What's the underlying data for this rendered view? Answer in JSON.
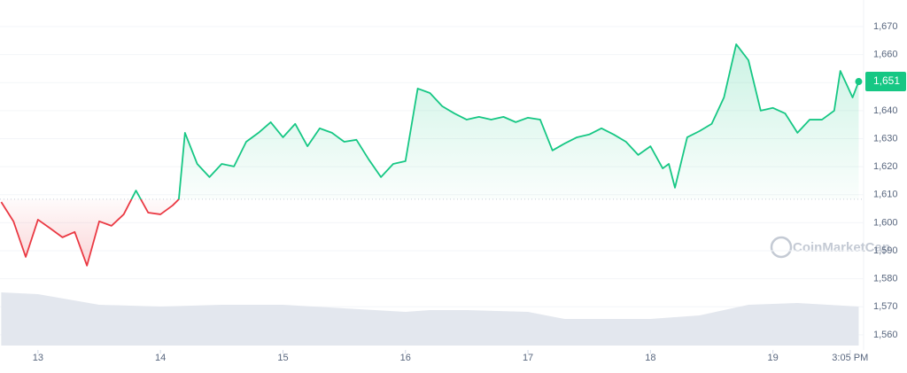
{
  "chart_data": {
    "type": "line",
    "x": [
      12.7,
      12.8,
      12.9,
      13.0,
      13.1,
      13.2,
      13.3,
      13.4,
      13.5,
      13.6,
      13.7,
      13.8,
      13.9,
      14.0,
      14.1,
      14.15,
      14.2,
      14.3,
      14.4,
      14.5,
      14.6,
      14.7,
      14.8,
      14.9,
      15.0,
      15.1,
      15.2,
      15.3,
      15.4,
      15.5,
      15.6,
      15.7,
      15.8,
      15.9,
      16.0,
      16.1,
      16.2,
      16.3,
      16.4,
      16.5,
      16.6,
      16.7,
      16.8,
      16.9,
      17.0,
      17.1,
      17.2,
      17.3,
      17.4,
      17.5,
      17.6,
      17.7,
      17.8,
      17.9,
      18.0,
      18.1,
      18.15,
      18.2,
      18.3,
      18.4,
      18.5,
      18.6,
      18.7,
      18.8,
      18.9,
      19.0,
      19.1,
      19.2,
      19.3,
      19.4,
      19.5,
      19.55,
      19.6,
      19.65,
      19.7
    ],
    "values": [
      1607.4,
      1600.5,
      1587.8,
      1601.1,
      1598,
      1594.8,
      1596.7,
      1584.7,
      1600.5,
      1598.9,
      1603,
      1611.5,
      1603.6,
      1603,
      1606.2,
      1608.4,
      1632.1,
      1621,
      1616.3,
      1621,
      1620.1,
      1628.9,
      1632.1,
      1635.9,
      1630.5,
      1635.3,
      1627.3,
      1633.7,
      1632.1,
      1628.9,
      1629.6,
      1622.6,
      1616.3,
      1621,
      1622,
      1647.9,
      1646.3,
      1641.6,
      1639,
      1636.8,
      1637.8,
      1636.8,
      1637.8,
      1635.9,
      1637.5,
      1636.8,
      1625.8,
      1628.3,
      1630.5,
      1631.5,
      1633.7,
      1631.5,
      1628.9,
      1624.2,
      1627.3,
      1619.4,
      1621,
      1612.5,
      1630.5,
      1632.7,
      1635.3,
      1644.7,
      1663.7,
      1658,
      1640,
      1641,
      1639,
      1632.1,
      1636.8,
      1636.8,
      1640,
      1654.2,
      1649.5,
      1644.7,
      1650.4
    ],
    "color_up": "#16c784",
    "color_down": "#ea3943",
    "baseline": 1608.4,
    "xlim": [
      12.69,
      19.74
    ],
    "ylim": [
      1554.6,
      1679.5
    ],
    "xticks": [
      13,
      14,
      15,
      16,
      17,
      18,
      19,
      {
        "value": 19.63,
        "label": "3:05 PM"
      }
    ],
    "yticks": [
      {
        "value": 1560,
        "label": "1,560"
      },
      {
        "value": 1570,
        "label": "1,570"
      },
      {
        "value": 1580,
        "label": "1,580"
      },
      {
        "value": 1590,
        "label": "1,590"
      },
      {
        "value": 1600,
        "label": "1,600"
      },
      {
        "value": 1610,
        "label": "1,610"
      },
      {
        "value": 1620,
        "label": "1,620"
      },
      {
        "value": 1630,
        "label": "1,630"
      },
      {
        "value": 1640,
        "label": "1,640"
      },
      {
        "value": 1650,
        "label": "1,650"
      },
      {
        "value": 1660,
        "label": "1,660"
      },
      {
        "value": 1670,
        "label": "1,670"
      }
    ],
    "grid": true,
    "price_label": "1,651",
    "watermark": "CoinMarketCap",
    "volume": {
      "axis": "y2",
      "color": "#e3e7ee",
      "x": [
        12.7,
        13.0,
        13.5,
        14.0,
        14.5,
        15.0,
        15.5,
        16.0,
        16.2,
        16.5,
        17.0,
        17.3,
        17.7,
        18.0,
        18.4,
        18.8,
        19.2,
        19.7
      ],
      "values": [
        60,
        58,
        46,
        44,
        46,
        46,
        42,
        38,
        40,
        40,
        38,
        30,
        30,
        30,
        34,
        46,
        48,
        44
      ]
    },
    "y2lim": [
      0,
      100
    ]
  }
}
